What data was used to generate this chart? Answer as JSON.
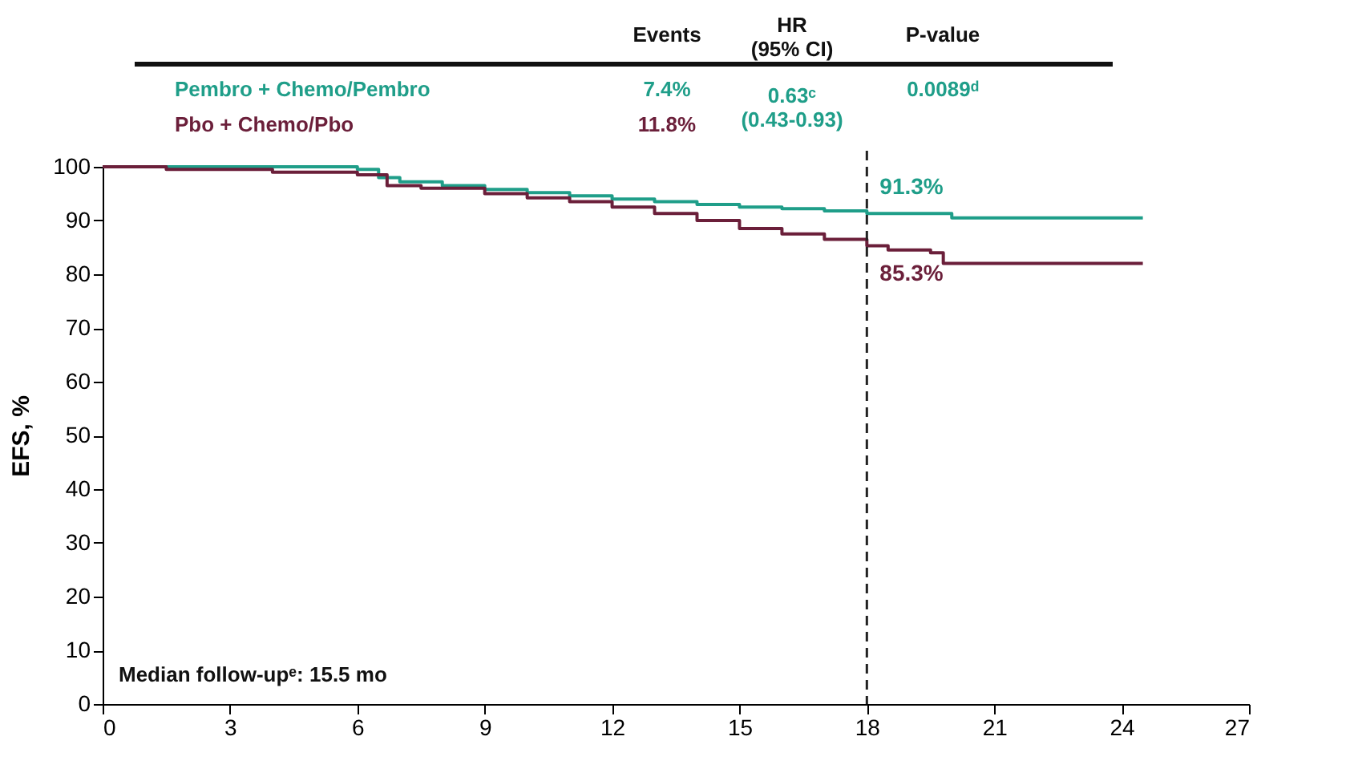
{
  "chart_data": {
    "type": "step",
    "ylabel": "EFS, %",
    "xlim": [
      0,
      27
    ],
    "xticks": [
      0,
      3,
      6,
      9,
      12,
      15,
      18,
      21,
      24,
      27
    ],
    "ylim": [
      0,
      100
    ],
    "yticks": [
      0,
      10,
      20,
      30,
      40,
      50,
      60,
      70,
      80,
      90,
      100
    ],
    "grid": false,
    "marker": "none",
    "line_style": "solid",
    "series": [
      {
        "name": "Pembro + Chemo/Pembro",
        "color": "#1f9e89",
        "x": [
          0,
          6,
          6.5,
          7,
          8,
          9,
          10,
          11,
          12,
          13,
          14,
          15,
          16,
          17,
          18,
          19.5,
          20,
          24.5
        ],
        "values": [
          100,
          99.5,
          98,
          97.2,
          96.5,
          95.8,
          95.2,
          94.6,
          94,
          93.5,
          93,
          92.5,
          92.2,
          91.8,
          91.3,
          91.3,
          90.5,
          90.5
        ]
      },
      {
        "name": "Pbo + Chemo/Pbo",
        "color": "#6b1f3a",
        "x": [
          0,
          1.5,
          4,
          6,
          6.7,
          7.5,
          9,
          10,
          11,
          12,
          13,
          14,
          15,
          16,
          17,
          18,
          18.5,
          19.5,
          19.8,
          24.5
        ],
        "values": [
          100,
          99.5,
          99,
          98.5,
          96.5,
          96,
          95,
          94.2,
          93.5,
          92.5,
          91.3,
          90,
          88.5,
          87.5,
          86.5,
          85.3,
          84.5,
          84,
          82,
          82
        ]
      }
    ],
    "ref_lines": [
      {
        "axis": "x",
        "value": 18,
        "label": null,
        "color": "#222222",
        "line_style": "dashed"
      }
    ],
    "annotations": [
      "Events",
      "HR\n(95% CI)",
      "P-value",
      "7.4%",
      "0.63ᶜ\n(0.43-0.93)",
      "0.0089ᵈ",
      "11.8%",
      "Median follow-upᵉ: 15.5 mo",
      {
        "text": "91.3%",
        "x": 18,
        "y": 91.3
      },
      {
        "text": "85.3%",
        "x": 18,
        "y": 85.3
      }
    ]
  }
}
